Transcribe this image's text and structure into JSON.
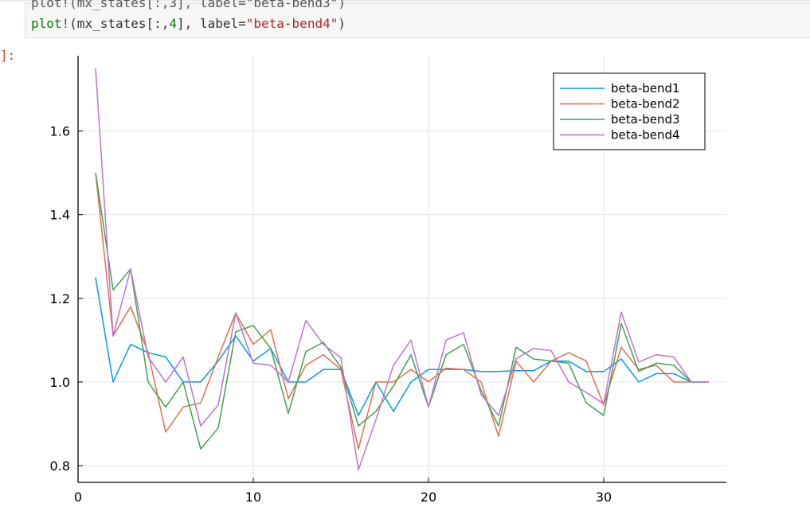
{
  "notebook": {
    "code_partial_top": "plot!(mx_states[:,3], label=\"beta-bend3\")",
    "code_fn": "plot!",
    "code_args_pre": "(mx_states[:,",
    "code_index": "4",
    "code_args_mid": "], label=",
    "code_label_str": "\"beta-bend4\"",
    "code_args_end": ")",
    "output_prompt": "]:"
  },
  "chart_data": {
    "type": "line",
    "title": "",
    "xlabel": "",
    "ylabel": "",
    "xlim": [
      0,
      37
    ],
    "ylim": [
      0.76,
      1.78
    ],
    "xticks": [
      0,
      10,
      20,
      30
    ],
    "yticks": [
      0.8,
      1.0,
      1.2,
      1.4,
      1.6
    ],
    "xtick_labels": [
      "0",
      "10",
      "20",
      "30"
    ],
    "ytick_labels": [
      "0.8",
      "1.0",
      "1.2",
      "1.4",
      "1.6"
    ],
    "grid": true,
    "legend_position": "top-right",
    "x": [
      1,
      2,
      3,
      4,
      5,
      6,
      7,
      8,
      9,
      10,
      11,
      12,
      13,
      14,
      15,
      16,
      17,
      18,
      19,
      20,
      21,
      22,
      23,
      24,
      25,
      26,
      27,
      28,
      29,
      30,
      31,
      32,
      33,
      34,
      35,
      36
    ],
    "series": [
      {
        "name": "beta-bend1",
        "color": "#009AFA",
        "values": [
          1.25,
          1.0,
          1.09,
          1.07,
          1.06,
          1.0,
          1.0,
          1.05,
          1.11,
          1.05,
          1.08,
          1.0,
          1.0,
          1.03,
          1.03,
          0.92,
          1.0,
          0.93,
          1.0,
          1.03,
          1.03,
          1.03,
          1.025,
          1.025,
          1.027,
          1.027,
          1.05,
          1.05,
          1.025,
          1.025,
          1.055,
          1.0,
          1.02,
          1.02,
          1.0,
          1.0
        ]
      },
      {
        "name": "beta-bend2",
        "color": "#E36F47",
        "values": [
          1.5,
          1.11,
          1.18,
          1.07,
          0.88,
          0.94,
          0.95,
          1.06,
          1.165,
          1.09,
          1.125,
          0.96,
          1.04,
          1.065,
          1.03,
          0.84,
          1.0,
          1.0,
          1.03,
          1.0,
          1.033,
          1.03,
          1.0,
          0.87,
          1.05,
          1.0,
          1.05,
          1.07,
          1.05,
          0.945,
          1.083,
          1.03,
          1.04,
          1.0,
          1.0,
          1.0
        ]
      },
      {
        "name": "beta-bend3",
        "color": "#3DA44D",
        "values": [
          1.5,
          1.22,
          1.27,
          1.0,
          0.94,
          1.0,
          0.84,
          0.89,
          1.12,
          1.135,
          1.08,
          0.925,
          1.073,
          1.095,
          1.035,
          0.895,
          0.93,
          0.99,
          1.065,
          0.94,
          1.065,
          1.09,
          0.98,
          0.895,
          1.083,
          1.055,
          1.05,
          1.045,
          0.95,
          0.92,
          1.14,
          1.025,
          1.045,
          1.04,
          1.0,
          1.0
        ]
      },
      {
        "name": "beta-bend4",
        "color": "#C271D2",
        "values": [
          1.75,
          1.11,
          1.27,
          1.06,
          1.0,
          1.06,
          0.895,
          0.945,
          1.165,
          1.045,
          1.04,
          1.0,
          1.147,
          1.09,
          1.058,
          0.79,
          0.91,
          1.04,
          1.1,
          0.94,
          1.1,
          1.118,
          0.97,
          0.92,
          1.056,
          1.08,
          1.075,
          1.0,
          0.975,
          0.948,
          1.167,
          1.048,
          1.065,
          1.06,
          1.0,
          1.0
        ]
      }
    ]
  }
}
